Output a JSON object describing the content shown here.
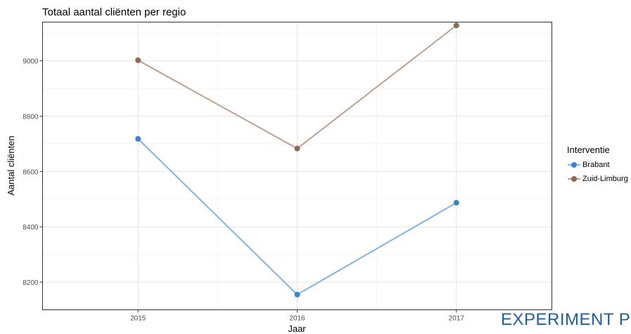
{
  "chart_data": {
    "type": "line",
    "title": "Totaal aantal cliënten per regio",
    "xlabel": "Jaar",
    "ylabel": "Aantal cliënten",
    "x": [
      2015,
      2016,
      2017
    ],
    "xlim": [
      2014.4,
      2017.6
    ],
    "ylim": [
      8100,
      9140
    ],
    "yticks": [
      8200,
      8400,
      8600,
      8800,
      9000
    ],
    "grid": true,
    "legend_title": "Interventie",
    "legend_position": "right",
    "series": [
      {
        "name": "Brabant",
        "values": [
          8718,
          8155,
          8487
        ],
        "color": "#3a84d0",
        "line_color": "#84b2df"
      },
      {
        "name": "Zuid-Limburg",
        "values": [
          9002,
          8683,
          9128
        ],
        "color": "#8d6a53",
        "line_color": "#bea08f"
      }
    ]
  },
  "watermark_text": "EXPERIMENT PE"
}
